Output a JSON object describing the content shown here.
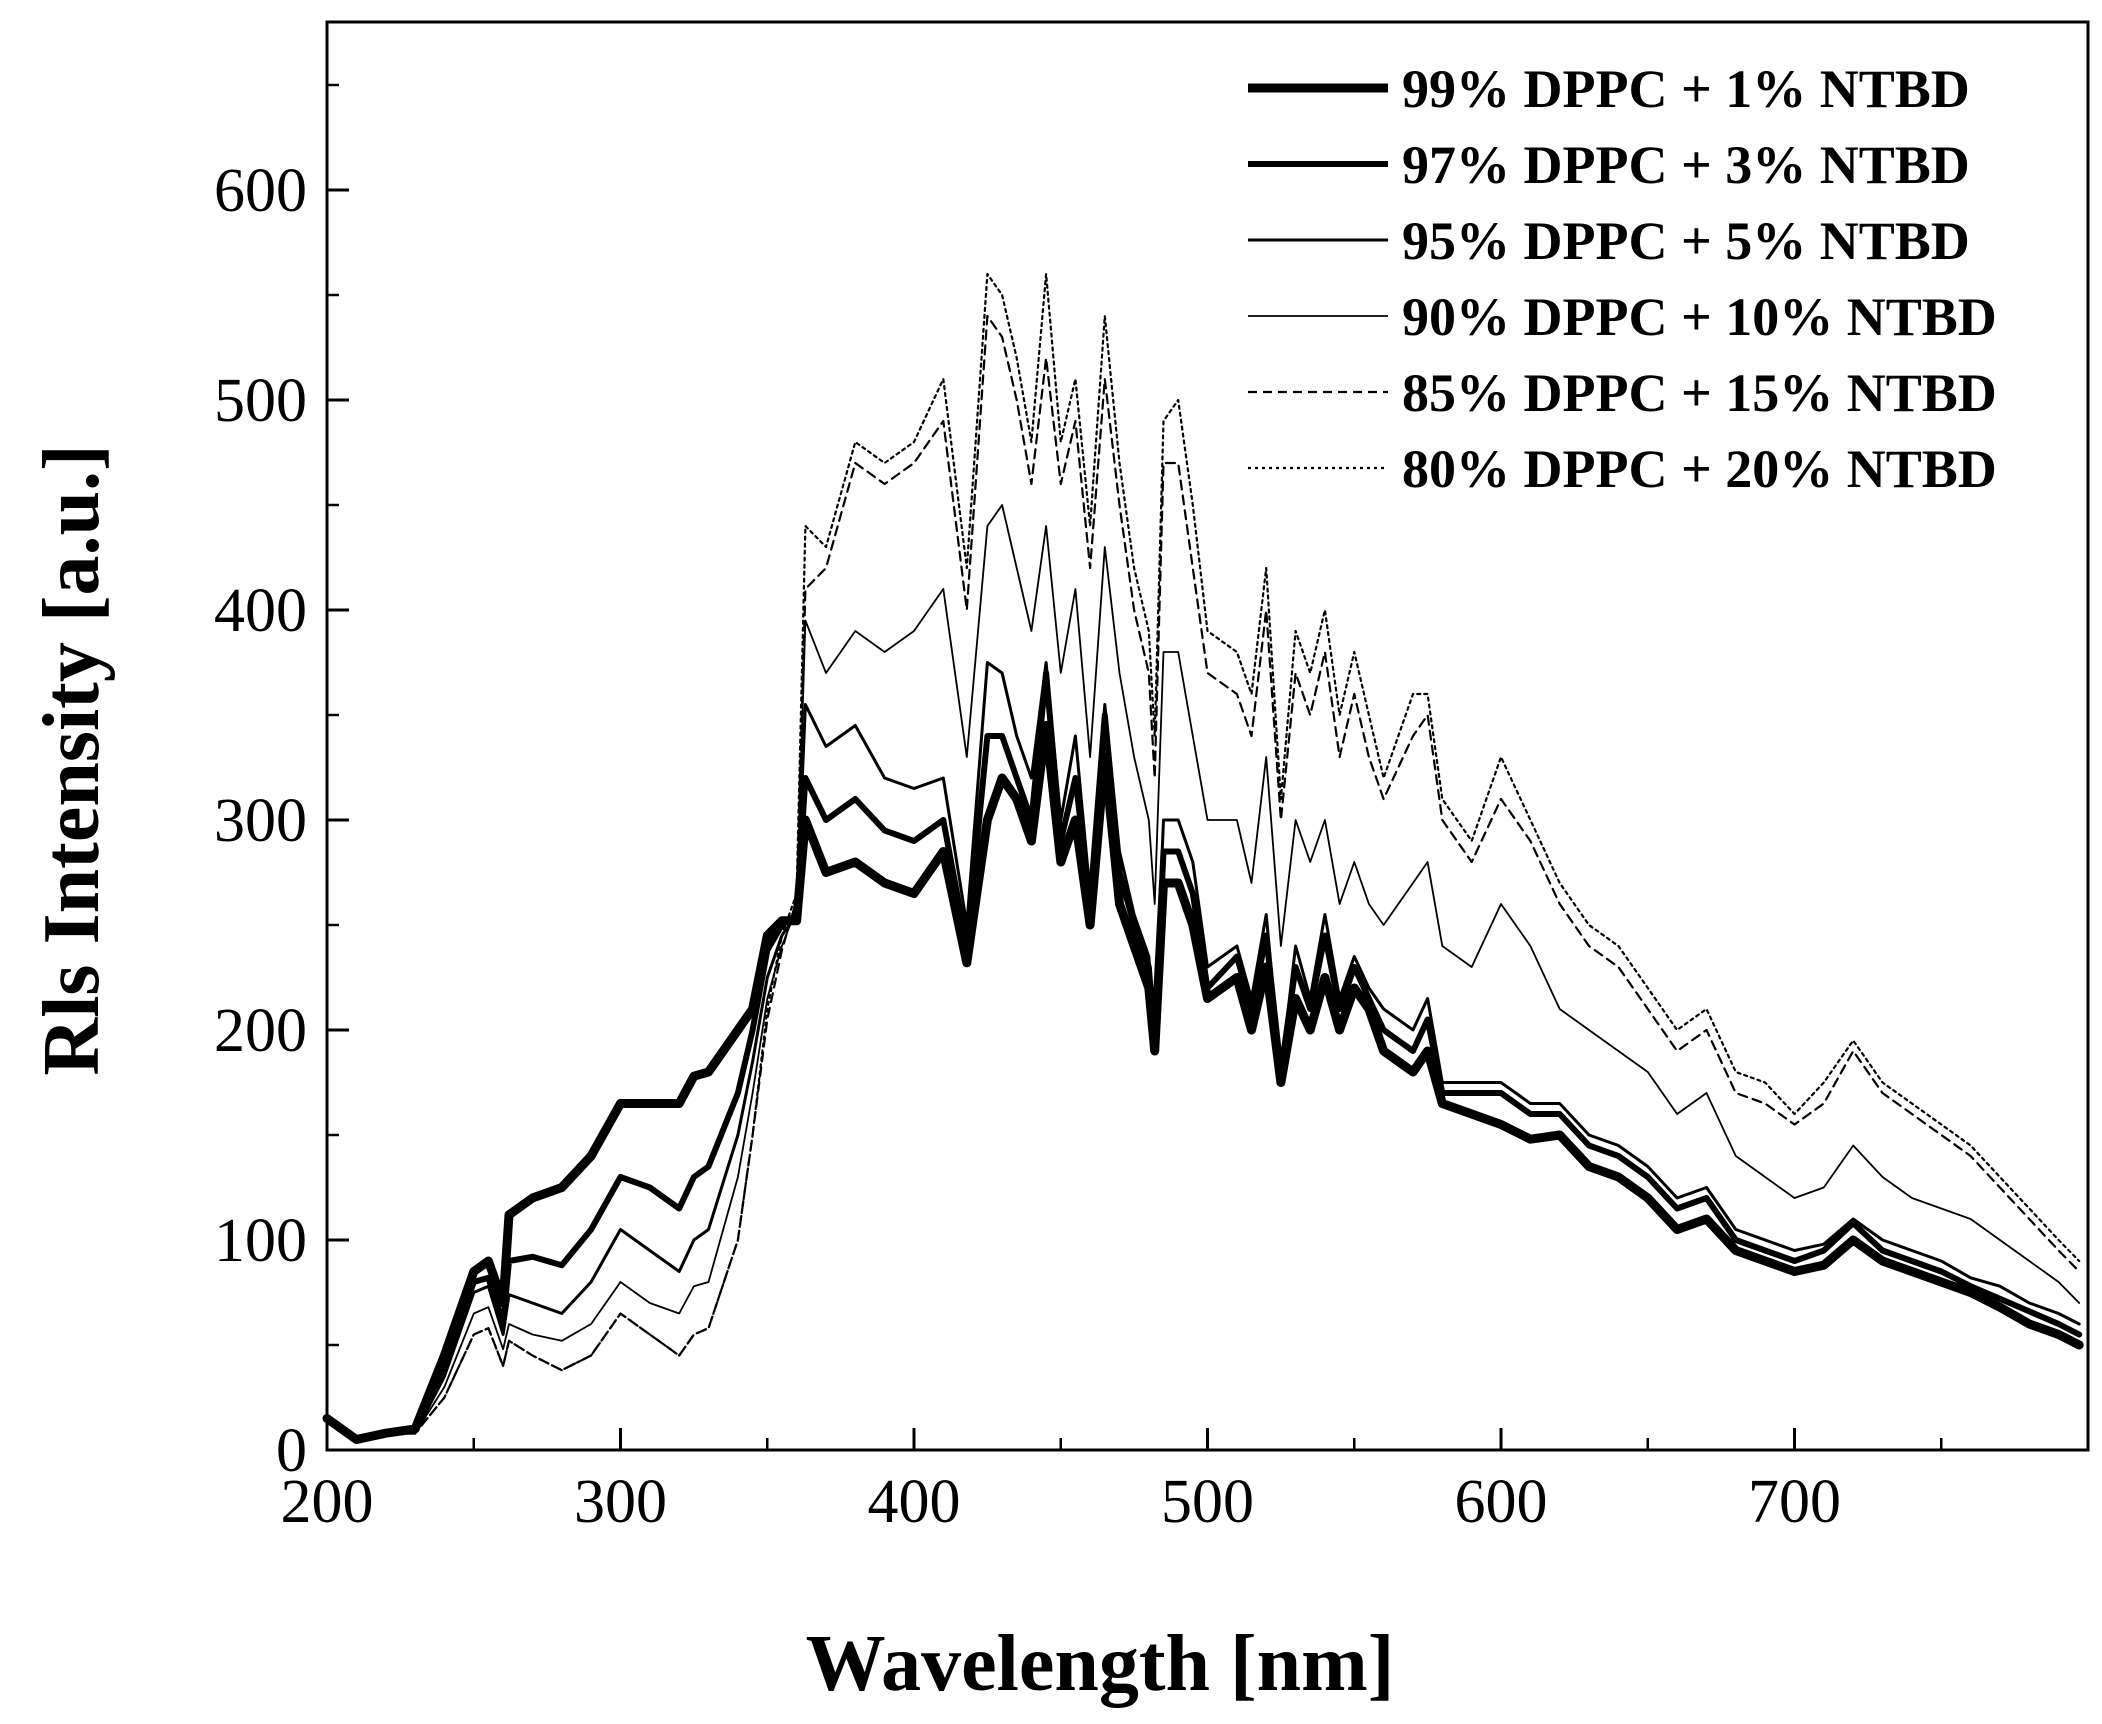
{
  "chart_data": {
    "type": "line",
    "title": "",
    "xlabel": "Wavelength [nm]",
    "ylabel": "Rls Intensity [a.u.]",
    "xlim": [
      200,
      800
    ],
    "ylim": [
      0,
      680
    ],
    "xticks": [
      200,
      300,
      400,
      500,
      600,
      700
    ],
    "xtick_labels": [
      "200",
      "300",
      "400",
      "500",
      "600",
      "700"
    ],
    "yticks": [
      0,
      100,
      200,
      300,
      400,
      500,
      600
    ],
    "ytick_labels": [
      "0",
      "100",
      "200",
      "300",
      "400",
      "500",
      "600"
    ],
    "grid": false,
    "legend_position": "top-right",
    "series": [
      {
        "name": "99% DPPC + 1% NTBD",
        "line_style": "solid-thick",
        "x": [
          200,
          210,
          220,
          230,
          240,
          250,
          255,
          260,
          262,
          270,
          280,
          290,
          300,
          310,
          320,
          325,
          330,
          340,
          345,
          350,
          355,
          360,
          363,
          370,
          380,
          390,
          400,
          410,
          418,
          425,
          430,
          435,
          440,
          445,
          450,
          455,
          460,
          465,
          470,
          475,
          480,
          482,
          485,
          490,
          495,
          500,
          510,
          515,
          520,
          525,
          530,
          535,
          540,
          545,
          550,
          555,
          560,
          570,
          575,
          580,
          590,
          600,
          610,
          620,
          630,
          640,
          650,
          660,
          670,
          680,
          690,
          700,
          710,
          720,
          730,
          740,
          750,
          760,
          770,
          780,
          790,
          797
        ],
        "values": [
          15,
          5,
          8,
          10,
          45,
          85,
          90,
          70,
          112,
          120,
          125,
          140,
          165,
          165,
          165,
          178,
          180,
          200,
          210,
          245,
          252,
          252,
          300,
          275,
          280,
          270,
          265,
          285,
          232,
          300,
          320,
          310,
          290,
          345,
          280,
          300,
          250,
          330,
          260,
          240,
          220,
          190,
          270,
          270,
          250,
          215,
          225,
          200,
          230,
          175,
          215,
          200,
          225,
          200,
          220,
          210,
          190,
          180,
          190,
          165,
          160,
          155,
          148,
          150,
          135,
          130,
          120,
          105,
          110,
          95,
          90,
          85,
          88,
          100,
          90,
          85,
          80,
          75,
          68,
          60,
          55,
          50
        ]
      },
      {
        "name": "97% DPPC + 3% NTBD",
        "line_style": "solid-medium",
        "x": [
          200,
          210,
          220,
          230,
          240,
          250,
          255,
          260,
          262,
          270,
          280,
          290,
          300,
          310,
          320,
          325,
          330,
          340,
          345,
          350,
          355,
          360,
          363,
          370,
          380,
          390,
          400,
          410,
          418,
          425,
          430,
          435,
          440,
          445,
          450,
          455,
          460,
          465,
          470,
          475,
          480,
          482,
          485,
          490,
          495,
          500,
          510,
          515,
          520,
          525,
          530,
          535,
          540,
          545,
          550,
          555,
          560,
          570,
          575,
          580,
          590,
          600,
          610,
          620,
          630,
          640,
          650,
          660,
          670,
          680,
          690,
          700,
          710,
          720,
          730,
          740,
          750,
          760,
          770,
          780,
          790,
          797
        ],
        "values": [
          15,
          5,
          8,
          10,
          40,
          80,
          82,
          60,
          90,
          92,
          88,
          105,
          130,
          125,
          115,
          130,
          135,
          170,
          200,
          238,
          250,
          255,
          320,
          300,
          310,
          295,
          290,
          300,
          240,
          340,
          340,
          320,
          300,
          370,
          290,
          320,
          260,
          350,
          275,
          250,
          230,
          195,
          285,
          285,
          265,
          220,
          235,
          210,
          245,
          180,
          230,
          210,
          245,
          210,
          230,
          215,
          200,
          190,
          205,
          170,
          170,
          170,
          160,
          160,
          145,
          140,
          130,
          115,
          120,
          100,
          95,
          90,
          95,
          108,
          95,
          90,
          85,
          78,
          72,
          66,
          60,
          55
        ]
      },
      {
        "name": "95% DPPC + 5% NTBD",
        "line_style": "solid-thin",
        "x": [
          200,
          210,
          220,
          230,
          240,
          250,
          255,
          260,
          262,
          270,
          280,
          290,
          300,
          310,
          320,
          325,
          330,
          340,
          345,
          350,
          355,
          360,
          363,
          370,
          380,
          390,
          400,
          410,
          418,
          425,
          430,
          435,
          440,
          445,
          450,
          455,
          460,
          465,
          470,
          475,
          480,
          482,
          485,
          490,
          495,
          500,
          510,
          515,
          520,
          525,
          530,
          535,
          540,
          545,
          550,
          555,
          560,
          570,
          575,
          580,
          590,
          600,
          610,
          620,
          630,
          640,
          650,
          660,
          670,
          680,
          690,
          700,
          710,
          720,
          730,
          740,
          750,
          760,
          770,
          780,
          790,
          797
        ],
        "values": [
          15,
          5,
          8,
          8,
          35,
          75,
          78,
          55,
          74,
          70,
          65,
          80,
          105,
          95,
          85,
          100,
          105,
          150,
          185,
          225,
          245,
          255,
          355,
          335,
          345,
          320,
          315,
          320,
          250,
          375,
          370,
          340,
          320,
          375,
          300,
          340,
          265,
          355,
          285,
          255,
          235,
          200,
          300,
          300,
          280,
          230,
          240,
          215,
          255,
          180,
          240,
          215,
          255,
          215,
          235,
          220,
          210,
          200,
          215,
          175,
          175,
          175,
          165,
          165,
          150,
          145,
          135,
          120,
          125,
          105,
          100,
          95,
          98,
          110,
          100,
          95,
          90,
          82,
          78,
          70,
          65,
          60
        ]
      },
      {
        "name": "90% DPPC + 10% NTBD",
        "line_style": "solid-hair",
        "x": [
          200,
          210,
          220,
          230,
          240,
          250,
          255,
          260,
          262,
          270,
          280,
          290,
          300,
          310,
          320,
          325,
          330,
          340,
          345,
          350,
          355,
          360,
          363,
          370,
          380,
          390,
          400,
          410,
          418,
          425,
          430,
          435,
          440,
          445,
          450,
          455,
          460,
          465,
          470,
          475,
          480,
          482,
          485,
          490,
          495,
          500,
          510,
          515,
          520,
          525,
          530,
          535,
          540,
          545,
          550,
          555,
          560,
          570,
          575,
          580,
          590,
          600,
          610,
          620,
          630,
          640,
          650,
          660,
          670,
          680,
          690,
          700,
          710,
          720,
          730,
          740,
          750,
          760,
          770,
          780,
          790,
          797
        ],
        "values": [
          15,
          5,
          8,
          8,
          30,
          65,
          68,
          48,
          60,
          55,
          52,
          60,
          80,
          70,
          65,
          78,
          80,
          130,
          170,
          215,
          240,
          258,
          395,
          370,
          390,
          380,
          390,
          410,
          330,
          440,
          450,
          420,
          390,
          440,
          370,
          410,
          330,
          430,
          370,
          330,
          300,
          260,
          380,
          380,
          340,
          300,
          300,
          270,
          330,
          240,
          300,
          280,
          300,
          260,
          280,
          260,
          250,
          270,
          280,
          240,
          230,
          260,
          240,
          210,
          200,
          190,
          180,
          160,
          170,
          140,
          130,
          120,
          125,
          145,
          130,
          120,
          115,
          110,
          100,
          90,
          80,
          70
        ]
      },
      {
        "name": "85% DPPC + 15% NTBD",
        "line_style": "dashed",
        "x": [
          200,
          210,
          220,
          230,
          240,
          250,
          255,
          260,
          262,
          270,
          280,
          290,
          300,
          310,
          320,
          325,
          330,
          340,
          345,
          350,
          355,
          360,
          363,
          370,
          380,
          390,
          400,
          410,
          418,
          425,
          430,
          435,
          440,
          445,
          450,
          455,
          460,
          465,
          470,
          475,
          480,
          482,
          485,
          490,
          495,
          500,
          510,
          515,
          520,
          525,
          530,
          535,
          540,
          545,
          550,
          555,
          560,
          570,
          575,
          580,
          590,
          600,
          610,
          620,
          630,
          640,
          650,
          660,
          670,
          680,
          690,
          700,
          710,
          720,
          730,
          740,
          750,
          760,
          770,
          780,
          790,
          797
        ],
        "values": [
          15,
          5,
          8,
          8,
          25,
          55,
          58,
          40,
          52,
          45,
          38,
          45,
          65,
          55,
          45,
          55,
          58,
          100,
          150,
          205,
          238,
          262,
          410,
          420,
          470,
          460,
          470,
          490,
          400,
          540,
          530,
          500,
          460,
          520,
          460,
          490,
          420,
          510,
          450,
          400,
          370,
          320,
          470,
          470,
          420,
          370,
          360,
          340,
          400,
          300,
          370,
          350,
          380,
          330,
          360,
          330,
          310,
          340,
          350,
          300,
          280,
          310,
          290,
          260,
          240,
          230,
          210,
          190,
          200,
          170,
          165,
          155,
          165,
          190,
          170,
          160,
          150,
          140,
          125,
          110,
          95,
          85
        ]
      },
      {
        "name": "80% DPPC + 20% NTBD",
        "line_style": "dotted",
        "x": [
          200,
          210,
          220,
          230,
          240,
          250,
          255,
          260,
          262,
          270,
          280,
          290,
          300,
          310,
          320,
          325,
          330,
          340,
          345,
          350,
          355,
          360,
          363,
          370,
          380,
          390,
          400,
          410,
          418,
          425,
          430,
          435,
          440,
          445,
          450,
          455,
          460,
          465,
          470,
          475,
          480,
          482,
          485,
          490,
          495,
          500,
          510,
          515,
          520,
          525,
          530,
          535,
          540,
          545,
          550,
          555,
          560,
          570,
          575,
          580,
          590,
          600,
          610,
          620,
          630,
          640,
          650,
          660,
          670,
          680,
          690,
          700,
          710,
          720,
          730,
          740,
          750,
          760,
          770,
          780,
          790,
          797
        ],
        "values": [
          15,
          5,
          8,
          8,
          25,
          55,
          58,
          40,
          52,
          45,
          38,
          45,
          65,
          55,
          45,
          55,
          58,
          100,
          150,
          210,
          245,
          265,
          440,
          430,
          480,
          470,
          480,
          510,
          420,
          560,
          550,
          520,
          480,
          560,
          480,
          510,
          440,
          540,
          470,
          420,
          390,
          340,
          490,
          500,
          450,
          390,
          380,
          360,
          420,
          310,
          390,
          370,
          400,
          350,
          380,
          350,
          320,
          360,
          360,
          310,
          290,
          330,
          300,
          270,
          250,
          240,
          220,
          200,
          210,
          180,
          175,
          160,
          175,
          195,
          175,
          165,
          155,
          145,
          130,
          115,
          100,
          90
        ]
      }
    ]
  }
}
